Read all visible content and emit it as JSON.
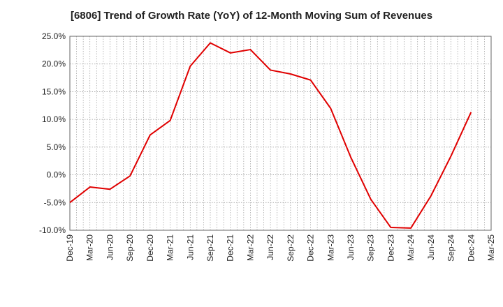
{
  "chart_data": {
    "type": "line",
    "title": "[6806]  Trend of Growth Rate (YoY) of 12-Month Moving Sum of Revenues",
    "xlabel": "",
    "ylabel": "",
    "ylim": [
      -10,
      25
    ],
    "yticks": [
      "25.0%",
      "20.0%",
      "15.0%",
      "10.0%",
      "5.0%",
      "0.0%",
      "-5.0%",
      "-10.0%"
    ],
    "ytick_values": [
      25,
      20,
      15,
      10,
      5,
      0,
      -5,
      -10
    ],
    "xtick_labels": [
      "Dec-19",
      "Mar-20",
      "Jun-20",
      "Sep-20",
      "Dec-20",
      "Mar-21",
      "Jun-21",
      "Sep-21",
      "Dec-21",
      "Mar-22",
      "Jun-22",
      "Sep-22",
      "Dec-22",
      "Mar-23",
      "Jun-23",
      "Sep-23",
      "Dec-23",
      "Mar-24",
      "Jun-24",
      "Sep-24",
      "Dec-24",
      "Mar-25"
    ],
    "grid": true,
    "line_color": "#e00000",
    "series": [
      {
        "name": "",
        "x": [
          "Dec-19",
          "Mar-20",
          "Jun-20",
          "Sep-20",
          "Dec-20",
          "Mar-21",
          "Jun-21",
          "Sep-21",
          "Dec-21",
          "Mar-22",
          "Jun-22",
          "Sep-22",
          "Dec-22",
          "Mar-23",
          "Jun-23",
          "Sep-23",
          "Dec-23",
          "Mar-24",
          "Jun-24",
          "Sep-24",
          "Dec-24"
        ],
        "values": [
          -5.0,
          -2.2,
          -2.6,
          -0.2,
          7.2,
          9.8,
          19.6,
          23.8,
          22.0,
          22.6,
          18.9,
          18.2,
          17.1,
          12.0,
          3.2,
          -4.4,
          -9.5,
          -9.6,
          -3.8,
          3.4,
          11.3
        ]
      }
    ]
  }
}
